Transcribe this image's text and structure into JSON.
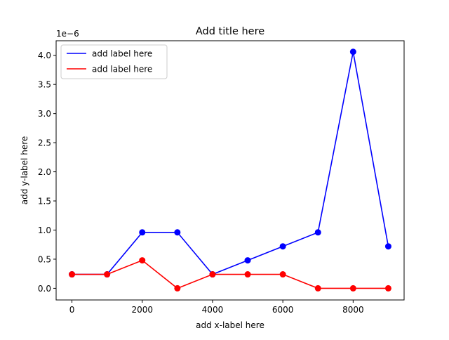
{
  "chart_data": {
    "type": "line",
    "title": "Add title here",
    "xlabel": "add x-label here",
    "ylabel": "add y-label here",
    "y_offset_label": "1e−6",
    "x": [
      0,
      1000,
      2000,
      3000,
      4000,
      5000,
      6000,
      7000,
      8000,
      9000
    ],
    "xlim": [
      -450,
      9450
    ],
    "ylim": [
      -0.2,
      4.25
    ],
    "y_scale_factor": 1e-06,
    "xticks": [
      0,
      2000,
      4000,
      6000,
      8000
    ],
    "xtick_labels": [
      "0",
      "2000",
      "4000",
      "6000",
      "8000"
    ],
    "yticks": [
      0.0,
      0.5,
      1.0,
      1.5,
      2.0,
      2.5,
      3.0,
      3.5,
      4.0
    ],
    "ytick_labels": [
      "0.0",
      "0.5",
      "1.0",
      "1.5",
      "2.0",
      "2.5",
      "3.0",
      "3.5",
      "4.0"
    ],
    "grid": false,
    "legend_position": "top-left",
    "series": [
      {
        "name": "add label here",
        "color": "#0000ff",
        "values": [
          0.24,
          0.24,
          0.96,
          0.96,
          0.24,
          0.48,
          0.72,
          0.96,
          4.06,
          0.72
        ]
      },
      {
        "name": "add label here",
        "color": "#ff0000",
        "values": [
          0.24,
          0.24,
          0.48,
          0.0,
          0.24,
          0.24,
          0.24,
          0.0,
          0.0,
          0.0
        ]
      }
    ]
  }
}
